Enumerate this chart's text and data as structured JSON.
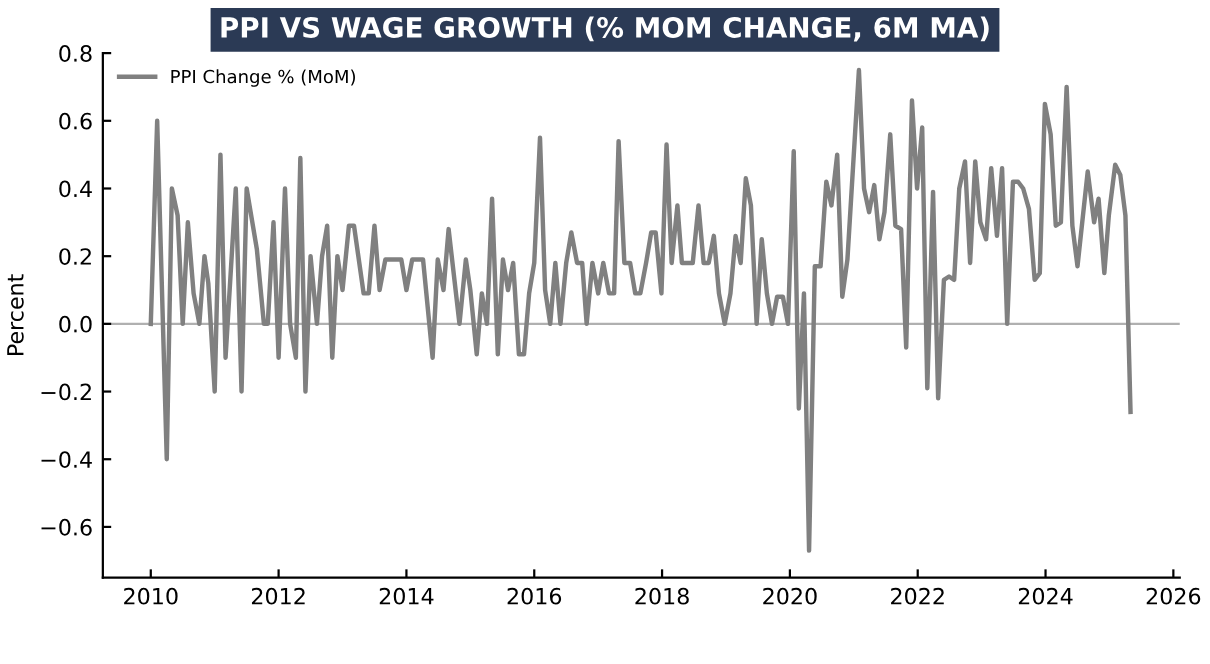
{
  "chart_data": {
    "type": "line",
    "title": "PPI VS WAGE GROWTH (% MOM CHANGE, 6M MA)",
    "ylabel": "Percent",
    "xlim": [
      2009.25,
      2026.1
    ],
    "xticks": [
      2010,
      2012,
      2014,
      2016,
      2018,
      2020,
      2022,
      2024,
      2026
    ],
    "ylim": [
      -0.75,
      0.8
    ],
    "yticks": [
      {
        "value": -0.6,
        "label": "−0.6"
      },
      {
        "value": -0.4,
        "label": "−0.4"
      },
      {
        "value": -0.2,
        "label": "−0.2"
      },
      {
        "value": 0,
        "label": "0.0"
      },
      0.2,
      0.4,
      0.6,
      0.8
    ],
    "grid": false,
    "legend": "top left",
    "line_style": "solid",
    "marker": "none",
    "ref_lines": [
      {
        "axis": "y",
        "value": 0,
        "color": "#b0b0b0"
      }
    ],
    "series": [
      {
        "name": "PPI Change % (MoM)",
        "color": "#808080",
        "x": [
          2010.0,
          2010.1,
          2010.25,
          2010.33,
          2010.42,
          2010.5,
          2010.58,
          2010.67,
          2010.76,
          2010.84,
          2010.9,
          2011.0,
          2011.09,
          2011.17,
          2011.33,
          2011.42,
          2011.5,
          2011.66,
          2011.77,
          2011.83,
          2011.92,
          2012.0,
          2012.1,
          2012.18,
          2012.27,
          2012.34,
          2012.42,
          2012.5,
          2012.6,
          2012.68,
          2012.76,
          2012.84,
          2012.92,
          2013.0,
          2013.1,
          2013.18,
          2013.33,
          2013.41,
          2013.5,
          2013.58,
          2013.67,
          2013.92,
          2014.0,
          2014.09,
          2014.26,
          2014.41,
          2014.49,
          2014.58,
          2014.66,
          2014.83,
          2014.93,
          2015.0,
          2015.1,
          2015.18,
          2015.26,
          2015.34,
          2015.43,
          2015.51,
          2015.59,
          2015.67,
          2015.76,
          2015.84,
          2015.92,
          2016.0,
          2016.09,
          2016.17,
          2016.25,
          2016.33,
          2016.41,
          2016.5,
          2016.58,
          2016.67,
          2016.75,
          2016.82,
          2016.91,
          2017.0,
          2017.08,
          2017.17,
          2017.25,
          2017.32,
          2017.41,
          2017.5,
          2017.58,
          2017.66,
          2017.75,
          2017.83,
          2017.9,
          2017.99,
          2018.07,
          2018.15,
          2018.24,
          2018.31,
          2018.48,
          2018.57,
          2018.65,
          2018.73,
          2018.81,
          2018.89,
          2018.98,
          2019.07,
          2019.15,
          2019.23,
          2019.31,
          2019.39,
          2019.48,
          2019.56,
          2019.64,
          2019.72,
          2019.8,
          2019.89,
          2019.97,
          2020.06,
          2020.14,
          2020.22,
          2020.3,
          2020.39,
          2020.48,
          2020.57,
          2020.65,
          2020.74,
          2020.82,
          2020.9,
          2021.08,
          2021.16,
          2021.24,
          2021.32,
          2021.4,
          2021.48,
          2021.57,
          2021.65,
          2021.74,
          2021.82,
          2021.91,
          2021.99,
          2022.07,
          2022.15,
          2022.24,
          2022.32,
          2022.41,
          2022.49,
          2022.57,
          2022.65,
          2022.74,
          2022.82,
          2022.9,
          2022.98,
          2023.07,
          2023.15,
          2023.24,
          2023.32,
          2023.4,
          2023.49,
          2023.57,
          2023.65,
          2023.74,
          2023.83,
          2023.91,
          2023.99,
          2024.08,
          2024.16,
          2024.24,
          2024.33,
          2024.42,
          2024.5,
          2024.66,
          2024.76,
          2024.83,
          2024.92,
          2024.99,
          2025.09,
          2025.17,
          2025.25,
          2025.33
        ],
        "values": [
          0,
          0.6,
          -0.4,
          0.4,
          0.32,
          0,
          0.3,
          0.09,
          0,
          0.2,
          0.12,
          -0.2,
          0.5,
          -0.1,
          0.4,
          -0.2,
          0.4,
          0.22,
          0,
          0,
          0.3,
          -0.1,
          0.4,
          0,
          -0.1,
          0.49,
          -0.2,
          0.2,
          0,
          0.2,
          0.29,
          -0.1,
          0.2,
          0.1,
          0.29,
          0.29,
          0.09,
          0.09,
          0.29,
          0.1,
          0.19,
          0.19,
          0.1,
          0.19,
          0.19,
          -0.1,
          0.19,
          0.1,
          0.28,
          0,
          0.19,
          0.1,
          -0.09,
          0.09,
          0,
          0.37,
          -0.09,
          0.19,
          0.1,
          0.18,
          -0.09,
          -0.09,
          0.09,
          0.18,
          0.55,
          0.1,
          0,
          0.18,
          0,
          0.18,
          0.27,
          0.18,
          0.18,
          0,
          0.18,
          0.09,
          0.18,
          0.09,
          0.09,
          0.54,
          0.18,
          0.18,
          0.09,
          0.09,
          0.18,
          0.27,
          0.27,
          0.09,
          0.53,
          0.18,
          0.35,
          0.18,
          0.18,
          0.35,
          0.18,
          0.18,
          0.26,
          0.09,
          0,
          0.09,
          0.26,
          0.18,
          0.43,
          0.35,
          0,
          0.25,
          0.09,
          0,
          0.08,
          0.08,
          0,
          0.51,
          -0.25,
          0.09,
          -0.67,
          0.17,
          0.17,
          0.42,
          0.35,
          0.5,
          0.08,
          0.19,
          0.75,
          0.4,
          0.33,
          0.41,
          0.25,
          0.33,
          0.56,
          0.29,
          0.28,
          -0.07,
          0.66,
          0.4,
          0.58,
          -0.19,
          0.39,
          -0.22,
          0.13,
          0.14,
          0.13,
          0.4,
          0.48,
          0.18,
          0.48,
          0.3,
          0.25,
          0.46,
          0.26,
          0.46,
          0,
          0.42,
          0.42,
          0.4,
          0.34,
          0.13,
          0.15,
          0.65,
          0.56,
          0.29,
          0.3,
          0.7,
          0.29,
          0.17,
          0.45,
          0.3,
          0.37,
          0.15,
          0.32,
          0.47,
          0.44,
          0.32,
          -0.26
        ]
      }
    ]
  }
}
